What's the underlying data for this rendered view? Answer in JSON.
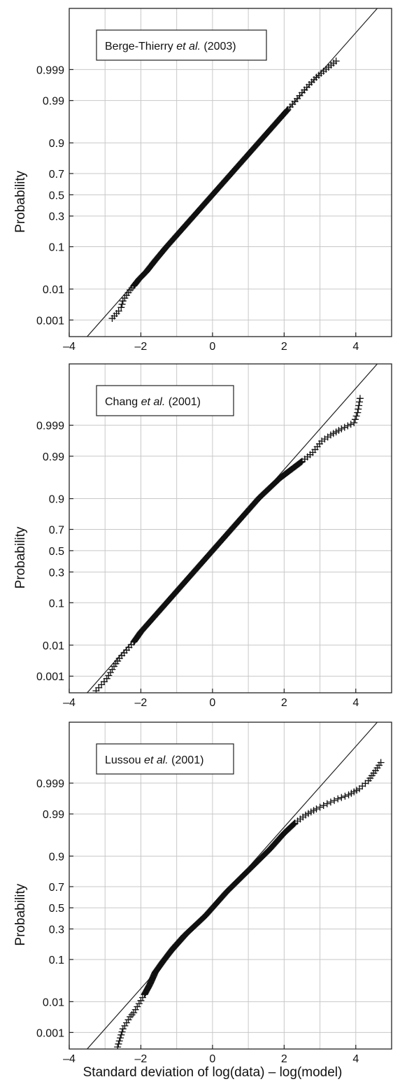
{
  "figure": {
    "xlabel": "Standard deviation of log(data) – log(model)"
  },
  "chart_data": [
    {
      "type": "scatter",
      "legend": {
        "prefix": "Berge-Thierry ",
        "italic": "et al.",
        "suffix": " (2003)",
        "placement": "top-left"
      },
      "ylabel": "Probability",
      "xlim": [
        -4,
        5
      ],
      "xticks": [
        -4,
        -2,
        0,
        2,
        4
      ],
      "xtick_labels": [
        "–4",
        "–2",
        "0",
        "2",
        "4"
      ],
      "ylim_sigma": [
        -3.5,
        4.6
      ],
      "yticks": [
        0.001,
        0.01,
        0.1,
        0.3,
        0.5,
        0.7,
        0.9,
        0.99,
        0.999
      ],
      "ytick_labels": [
        "0.001",
        "0.01",
        "0.1",
        "0.3",
        "0.5",
        "0.7",
        "0.9",
        "0.99",
        "0.999"
      ],
      "yscale": "normal-probability",
      "grid": true,
      "reference_line": {
        "slope": 1,
        "intercept": 0
      },
      "series": [
        {
          "marker": "+",
          "x": [
            -2.8,
            -2.62,
            -2.55,
            -2.5,
            -2.4,
            -2.3,
            -2.2,
            -2.05,
            -1.85,
            -1.6,
            -1.3,
            -1.0,
            -0.7,
            -0.4,
            -0.1,
            0.2,
            0.5,
            0.8,
            1.1,
            1.4,
            1.65,
            1.9,
            2.1,
            2.3,
            2.5,
            2.7,
            2.9,
            3.1,
            3.45
          ],
          "y": [
            -3.05,
            -2.87,
            -2.78,
            -2.62,
            -2.48,
            -2.35,
            -2.25,
            -2.08,
            -1.9,
            -1.62,
            -1.3,
            -1.0,
            -0.7,
            -0.4,
            -0.1,
            0.2,
            0.5,
            0.8,
            1.1,
            1.4,
            1.65,
            1.9,
            2.1,
            2.3,
            2.52,
            2.72,
            2.9,
            3.05,
            3.3
          ]
        }
      ]
    },
    {
      "type": "scatter",
      "legend": {
        "prefix": "Chang ",
        "italic": "et al.",
        "suffix": " (2001)",
        "placement": "top-left"
      },
      "ylabel": "Probability",
      "xlim": [
        -4,
        5
      ],
      "xticks": [
        -4,
        -2,
        0,
        2,
        4
      ],
      "xtick_labels": [
        "–4",
        "–2",
        "0",
        "2",
        "4"
      ],
      "ylim_sigma": [
        -3.5,
        4.6
      ],
      "yticks": [
        0.001,
        0.01,
        0.1,
        0.3,
        0.5,
        0.7,
        0.9,
        0.99,
        0.999
      ],
      "ytick_labels": [
        "0.001",
        "0.01",
        "0.1",
        "0.3",
        "0.5",
        "0.7",
        "0.9",
        "0.99",
        "0.999"
      ],
      "yscale": "normal-probability",
      "grid": true,
      "reference_line": {
        "slope": 1,
        "intercept": 0
      },
      "series": [
        {
          "marker": "+",
          "x": [
            -3.25,
            -3.1,
            -2.95,
            -2.85,
            -2.75,
            -2.6,
            -2.4,
            -2.2,
            -2.0,
            -1.7,
            -1.4,
            -1.1,
            -0.8,
            -0.5,
            -0.2,
            0.1,
            0.4,
            0.7,
            1.0,
            1.3,
            1.6,
            1.9,
            2.2,
            2.5,
            2.8,
            3.05,
            3.3,
            3.6,
            3.95,
            4.05,
            4.12
          ],
          "y": [
            -3.45,
            -3.3,
            -3.15,
            -3.0,
            -2.85,
            -2.65,
            -2.45,
            -2.25,
            -2.0,
            -1.7,
            -1.4,
            -1.1,
            -0.8,
            -0.5,
            -0.2,
            0.1,
            0.4,
            0.7,
            1.0,
            1.3,
            1.55,
            1.8,
            2.0,
            2.2,
            2.42,
            2.7,
            2.85,
            3.0,
            3.15,
            3.4,
            3.75
          ]
        }
      ]
    },
    {
      "type": "scatter",
      "legend": {
        "prefix": "Lussou ",
        "italic": "et al.",
        "suffix": " (2001)",
        "placement": "top-left"
      },
      "ylabel": "Probability",
      "xlim": [
        -4,
        5
      ],
      "xticks": [
        -4,
        -2,
        0,
        2,
        4
      ],
      "xtick_labels": [
        "–4",
        "–2",
        "0",
        "2",
        "4"
      ],
      "ylim_sigma": [
        -3.5,
        4.6
      ],
      "yticks": [
        0.001,
        0.01,
        0.1,
        0.3,
        0.5,
        0.7,
        0.9,
        0.99,
        0.999
      ],
      "ytick_labels": [
        "0.001",
        "0.01",
        "0.1",
        "0.3",
        "0.5",
        "0.7",
        "0.9",
        "0.99",
        "0.999"
      ],
      "yscale": "normal-probability",
      "grid": true,
      "reference_line": {
        "slope": 1,
        "intercept": 0
      },
      "series": [
        {
          "marker": "+",
          "x": [
            -2.65,
            -2.6,
            -2.55,
            -2.5,
            -2.4,
            -2.3,
            -2.2,
            -2.1,
            -2.0,
            -1.9,
            -1.75,
            -1.6,
            -1.4,
            -1.1,
            -0.8,
            -0.5,
            -0.2,
            0.1,
            0.4,
            0.8,
            1.2,
            1.6,
            2.0,
            2.3,
            2.6,
            2.9,
            3.2,
            3.5,
            3.8,
            4.1,
            4.35,
            4.55,
            4.7
          ],
          "y": [
            -3.45,
            -3.3,
            -3.15,
            -3.0,
            -2.85,
            -2.7,
            -2.6,
            -2.45,
            -2.3,
            -2.15,
            -1.9,
            -1.6,
            -1.35,
            -1.0,
            -0.7,
            -0.45,
            -0.2,
            0.1,
            0.4,
            0.75,
            1.1,
            1.45,
            1.85,
            2.1,
            2.3,
            2.45,
            2.58,
            2.7,
            2.8,
            2.95,
            3.15,
            3.4,
            3.6
          ]
        }
      ]
    }
  ]
}
